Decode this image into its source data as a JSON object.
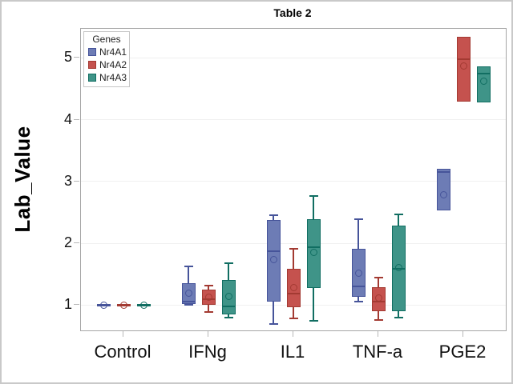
{
  "chart_data": {
    "type": "box",
    "title": "Table 2",
    "ylabel": "Lab_Value",
    "xlabel": "",
    "ylim": [
      0.6,
      5.45
    ],
    "yticks": [
      1,
      2,
      3,
      4,
      5
    ],
    "grid": true,
    "categories": [
      "Control",
      "IFNg",
      "IL1",
      "TNF-a",
      "PGE2"
    ],
    "legend": {
      "title": "Genes",
      "position": "top-left-inside"
    },
    "series": [
      {
        "name": "Nr4A1",
        "fill": "#6d7cb5",
        "stroke": "#46549a",
        "boxes": [
          {
            "low": 1.0,
            "q1": 1.0,
            "median": 1.0,
            "q3": 1.0,
            "high": 1.0,
            "mean": 1.0
          },
          {
            "low": 1.0,
            "q1": 1.02,
            "median": 1.05,
            "q3": 1.35,
            "high": 1.63,
            "mean": 1.19
          },
          {
            "low": 0.69,
            "q1": 1.06,
            "median": 1.87,
            "q3": 2.38,
            "high": 2.46,
            "mean": 1.73
          },
          {
            "low": 1.05,
            "q1": 1.13,
            "median": 1.3,
            "q3": 1.91,
            "high": 2.39,
            "mean": 1.52
          },
          {
            "low": 2.53,
            "q1": 2.53,
            "median": 3.15,
            "q3": 3.2,
            "high": 3.2,
            "mean": 2.78
          }
        ]
      },
      {
        "name": "Nr4A2",
        "fill": "#c5524e",
        "stroke": "#a33a32",
        "boxes": [
          {
            "low": 1.0,
            "q1": 1.0,
            "median": 1.0,
            "q3": 1.0,
            "high": 1.0,
            "mean": 1.0
          },
          {
            "low": 0.89,
            "q1": 1.01,
            "median": 1.1,
            "q3": 1.25,
            "high": 1.31,
            "mean": 1.13
          },
          {
            "low": 0.78,
            "q1": 0.96,
            "median": 1.19,
            "q3": 1.58,
            "high": 1.91,
            "mean": 1.28
          },
          {
            "low": 0.76,
            "q1": 0.9,
            "median": 1.06,
            "q3": 1.29,
            "high": 1.44,
            "mean": 1.11
          },
          {
            "low": 4.29,
            "q1": 4.29,
            "median": 4.98,
            "q3": 5.34,
            "high": 5.34,
            "mean": 4.87
          }
        ]
      },
      {
        "name": "Nr4A3",
        "fill": "#3f9488",
        "stroke": "#116e62",
        "boxes": [
          {
            "low": 1.0,
            "q1": 1.0,
            "median": 1.0,
            "q3": 1.0,
            "high": 1.0,
            "mean": 1.0
          },
          {
            "low": 0.8,
            "q1": 0.85,
            "median": 0.98,
            "q3": 1.41,
            "high": 1.68,
            "mean": 1.14
          },
          {
            "low": 0.75,
            "q1": 1.27,
            "median": 1.93,
            "q3": 2.39,
            "high": 2.77,
            "mean": 1.85
          },
          {
            "low": 0.8,
            "q1": 0.9,
            "median": 1.59,
            "q3": 2.29,
            "high": 2.47,
            "mean": 1.6
          },
          {
            "low": 4.28,
            "q1": 4.28,
            "median": 4.75,
            "q3": 4.86,
            "high": 4.86,
            "mean": 4.62
          }
        ]
      }
    ]
  }
}
